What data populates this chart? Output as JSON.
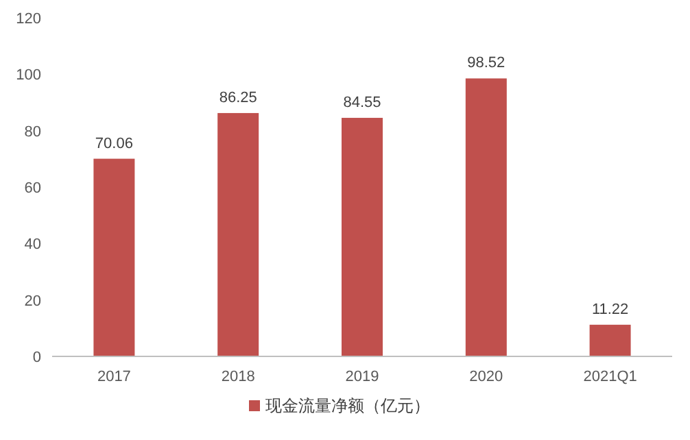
{
  "chart_data": {
    "type": "bar",
    "categories": [
      "2017",
      "2018",
      "2019",
      "2020",
      "2021Q1"
    ],
    "series": [
      {
        "name": "现金流量净额（亿元）",
        "color": "#c0504d",
        "values": [
          70.06,
          86.25,
          84.55,
          98.52,
          11.22
        ]
      }
    ],
    "ylim": [
      0,
      120
    ],
    "yticks": [
      0,
      20,
      40,
      60,
      80,
      100,
      120
    ],
    "data_labels": true,
    "legend": "bottom",
    "grid": false
  }
}
